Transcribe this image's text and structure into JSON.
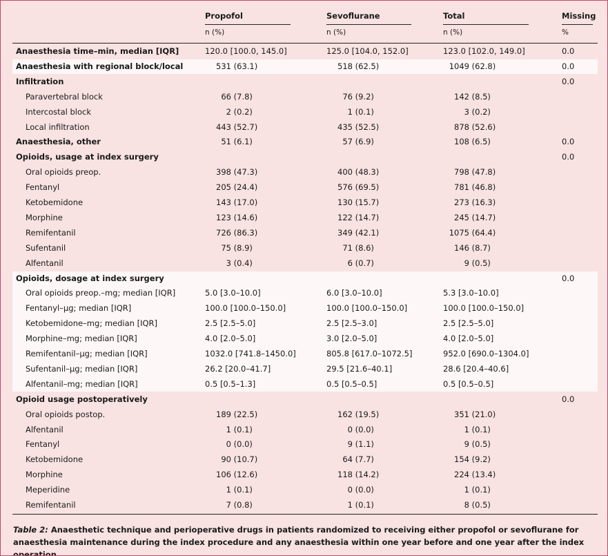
{
  "header": {
    "columns": [
      {
        "name": "Propofol",
        "unit": "n (%)"
      },
      {
        "name": "Sevoflurane",
        "unit": "n (%)"
      },
      {
        "name": "Total",
        "unit": "n (%)"
      },
      {
        "name": "Missing",
        "unit": "%"
      }
    ]
  },
  "groups": [
    {
      "rows": [
        {
          "label": "Anaesthesia time–min, median [IQR]",
          "values": [
            "120.0 [100.0, 145.0]",
            "125.0 [104.0, 152.0]",
            "123.0 [102.0, 149.0]"
          ],
          "missing": "0.0"
        }
      ]
    },
    {
      "rows": [
        {
          "label": "Anaesthesia with regional block/local",
          "values": [
            "531 (63.1)",
            "518 (62.5)",
            "1049 (62.8)"
          ],
          "missing": "0.0"
        }
      ]
    },
    {
      "rows": [
        {
          "label": "Infiltration",
          "missing": "0.0"
        },
        {
          "label": "Paravertebral block",
          "values": [
            "66 (7.8)",
            "76 (9.2)",
            "142 (8.5)"
          ]
        },
        {
          "label": "Intercostal block",
          "values": [
            "2 (0.2)",
            "1 (0.1)",
            "3 (0.2)"
          ]
        },
        {
          "label": "Local infiltration",
          "values": [
            "443 (52.7)",
            "435 (52.5)",
            "878 (52.6)"
          ]
        }
      ]
    },
    {
      "rows": [
        {
          "label": "Anaesthesia, other",
          "values": [
            "51 (6.1)",
            "57 (6.9)",
            "108 (6.5)"
          ],
          "missing": "0.0"
        }
      ]
    },
    {
      "rows": [
        {
          "label": "Opioids, usage at index surgery",
          "missing": "0.0"
        },
        {
          "label": "Oral opioids preop.",
          "values": [
            "398 (47.3)",
            "400 (48.3)",
            "798 (47.8)"
          ]
        },
        {
          "label": "Fentanyl",
          "values": [
            "205 (24.4)",
            "576 (69.5)",
            "781 (46.8)"
          ]
        },
        {
          "label": "Ketobemidone",
          "values": [
            "143 (17.0)",
            "130 (15.7)",
            "273 (16.3)"
          ]
        },
        {
          "label": "Morphine",
          "values": [
            "123 (14.6)",
            "122 (14.7)",
            "245 (14.7)"
          ]
        },
        {
          "label": "Remifentanil",
          "values": [
            "726 (86.3)",
            "349 (42.1)",
            "1075 (64.4)"
          ]
        },
        {
          "label": "Sufentanil",
          "values": [
            "75 (8.9)",
            "71 (8.6)",
            "146 (8.7)"
          ]
        },
        {
          "label": "Alfentanil",
          "values": [
            "3 (0.4)",
            "6 (0.7)",
            "9 (0.5)"
          ]
        }
      ]
    },
    {
      "rows": [
        {
          "label": "Opioids, dosage at index surgery",
          "missing": "0.0"
        },
        {
          "label": "Oral opioids preop.–mg; median [IQR]",
          "values": [
            "5.0 [3.0–10.0]",
            "6.0 [3.0–10.0]",
            "5.3 [3.0–10.0]"
          ]
        },
        {
          "label": "Fentanyl–µg; median [IQR]",
          "values": [
            "100.0 [100.0–150.0]",
            "100.0 [100.0–150.0]",
            "100.0 [100.0–150.0]"
          ]
        },
        {
          "label": "Ketobemidone–mg; median [IQR]",
          "values": [
            "2.5 [2.5–5.0]",
            "2.5 [2.5–3.0]",
            "2.5 [2.5–5.0]"
          ]
        },
        {
          "label": "Morphine–mg; median [IQR]",
          "values": [
            "4.0 [2.0–5.0]",
            "3.0 [2.0–5.0]",
            "4.0 [2.0–5.0]"
          ]
        },
        {
          "label": "Remifentanil–µg; median [IQR]",
          "values": [
            "1032.0 [741.8–1450.0]",
            "805.8 [617.0–1072.5]",
            "952.0 [690.0–1304.0]"
          ]
        },
        {
          "label": "Sufentanil–µg; median [IQR]",
          "values": [
            "26.2 [20.0–41.7]",
            "29.5 [21.6–40.1]",
            "28.6 [20.4–40.6]"
          ]
        },
        {
          "label": "Alfentanil–mg; median [IQR]",
          "values": [
            "0.5 [0.5–1.3]",
            "0.5 [0.5–0.5]",
            "0.5 [0.5–0.5]"
          ]
        }
      ]
    },
    {
      "rows": [
        {
          "label": "Opioid usage postoperatively",
          "missing": "0.0"
        },
        {
          "label": "Oral opioids postop.",
          "values": [
            "189 (22.5)",
            "162 (19.5)",
            "351 (21.0)"
          ]
        },
        {
          "label": "Alfentanil",
          "values": [
            "1 (0.1)",
            "0 (0.0)",
            "1 (0.1)"
          ]
        },
        {
          "label": "Fentanyl",
          "values": [
            "0 (0.0)",
            "9 (1.1)",
            "9 (0.5)"
          ]
        },
        {
          "label": "Ketobemidone",
          "values": [
            "90 (10.7)",
            "64 (7.7)",
            "154 (9.2)"
          ]
        },
        {
          "label": "Morphine",
          "values": [
            "106 (12.6)",
            "118 (14.2)",
            "224 (13.4)"
          ]
        },
        {
          "label": "Meperidine",
          "values": [
            "1 (0.1)",
            "0 (0.0)",
            "1 (0.1)"
          ]
        },
        {
          "label": "Remifentanil",
          "values": [
            "7 (0.8)",
            "1 (0.1)",
            "8 (0.5)"
          ]
        }
      ]
    }
  ],
  "caption": {
    "label": "Table 2:",
    "text": "Anaesthetic technique and perioperative drugs in patients randomized to receiving either propofol or sevoflurane for anaesthesia maintenance during the index procedure and any anaesthesia within one year before and one year after the index operation."
  }
}
